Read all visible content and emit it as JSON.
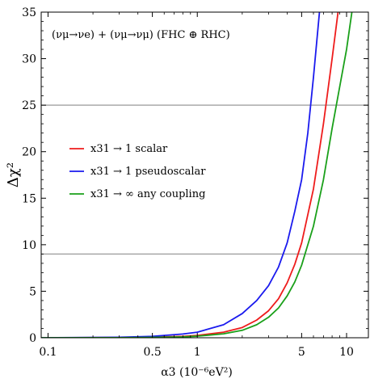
{
  "chart_data": {
    "type": "line",
    "annotation": "(νμ→νe) + (νμ→νμ)  (FHC ⊕ RHC)",
    "xlabel": "α3 (10⁻⁶eV²)",
    "ylabel": "Δχ²",
    "x_scale": "log",
    "xlim": [
      0.09,
      14
    ],
    "ylim": [
      0,
      35
    ],
    "x_ticks": [
      {
        "value": 0.1,
        "label": "0.1"
      },
      {
        "value": 0.5,
        "label": "0.5"
      },
      {
        "value": 1,
        "label": "1"
      },
      {
        "value": 5,
        "label": "5"
      },
      {
        "value": 10,
        "label": "10"
      }
    ],
    "y_ticks": [
      {
        "value": 0,
        "label": "0"
      },
      {
        "value": 5,
        "label": "5"
      },
      {
        "value": 10,
        "label": "10"
      },
      {
        "value": 15,
        "label": "15"
      },
      {
        "value": 20,
        "label": "20"
      },
      {
        "value": 25,
        "label": "25"
      },
      {
        "value": 30,
        "label": "30"
      },
      {
        "value": 35,
        "label": "35"
      }
    ],
    "reference_lines_y": [
      9,
      25
    ],
    "legend_position": "center-left",
    "series": [
      {
        "name": "x31 → 1 scalar",
        "color": "#ee1c1c",
        "points": [
          [
            0.09,
            0
          ],
          [
            0.3,
            0.02
          ],
          [
            0.5,
            0.06
          ],
          [
            0.8,
            0.15
          ],
          [
            1.0,
            0.25
          ],
          [
            1.5,
            0.6
          ],
          [
            2.0,
            1.1
          ],
          [
            2.5,
            1.9
          ],
          [
            3.0,
            2.9
          ],
          [
            3.5,
            4.2
          ],
          [
            4.0,
            5.9
          ],
          [
            4.5,
            7.9
          ],
          [
            5.0,
            10.2
          ],
          [
            6.0,
            16.0
          ],
          [
            7.0,
            23.0
          ],
          [
            8.0,
            30.0
          ],
          [
            8.8,
            35.2
          ]
        ]
      },
      {
        "name": "x31 → 1 pseudoscalar",
        "color": "#1a1aee",
        "points": [
          [
            0.09,
            0
          ],
          [
            0.3,
            0.05
          ],
          [
            0.5,
            0.15
          ],
          [
            0.8,
            0.4
          ],
          [
            1.0,
            0.6
          ],
          [
            1.5,
            1.4
          ],
          [
            2.0,
            2.6
          ],
          [
            2.5,
            4.0
          ],
          [
            3.0,
            5.6
          ],
          [
            3.5,
            7.6
          ],
          [
            4.0,
            10.2
          ],
          [
            4.5,
            13.6
          ],
          [
            5.0,
            17.0
          ],
          [
            5.5,
            22.0
          ],
          [
            6.0,
            28.0
          ],
          [
            6.6,
            35.2
          ]
        ]
      },
      {
        "name": "x31 → ∞ any coupling",
        "color": "#1aa01a",
        "points": [
          [
            0.09,
            0
          ],
          [
            0.3,
            0.01
          ],
          [
            0.5,
            0.04
          ],
          [
            0.8,
            0.1
          ],
          [
            1.0,
            0.17
          ],
          [
            1.5,
            0.42
          ],
          [
            2.0,
            0.8
          ],
          [
            2.5,
            1.4
          ],
          [
            3.0,
            2.2
          ],
          [
            3.5,
            3.2
          ],
          [
            4.0,
            4.5
          ],
          [
            4.5,
            6.0
          ],
          [
            5.0,
            7.8
          ],
          [
            6.0,
            12.0
          ],
          [
            7.0,
            17.0
          ],
          [
            8.0,
            22.5
          ],
          [
            9.0,
            27.0
          ],
          [
            10.0,
            31.0
          ],
          [
            10.9,
            35.2
          ]
        ]
      }
    ]
  }
}
